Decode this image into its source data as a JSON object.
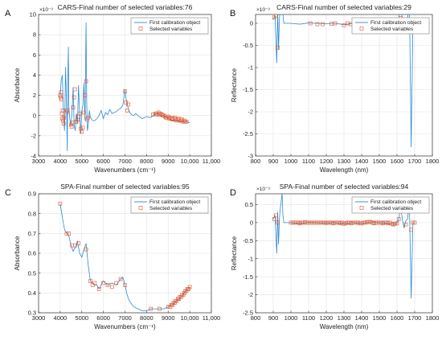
{
  "chart_data": [
    {
      "panel_label": "A",
      "type": "line",
      "title": "CARS-Final number of selected variables:76",
      "xlabel": "Wavenumbers (cm⁻¹)",
      "ylabel": "Absorbance",
      "multiplier": "×10⁻³",
      "xlim": [
        3000,
        11000
      ],
      "ylim": [
        -4,
        10
      ],
      "xticks": [
        3000,
        4000,
        5000,
        6000,
        7000,
        8000,
        9000,
        10000,
        11000
      ],
      "xtick_labels": [
        "3000",
        "4000",
        "5000",
        "6000",
        "7000",
        "8000",
        "9000",
        "10,000",
        "11,000"
      ],
      "yticks": [
        -4,
        -2,
        0,
        2,
        4,
        6,
        8,
        10
      ],
      "grid": true,
      "legend_position": "top-right",
      "series": [
        {
          "name": "First calibration object",
          "x": [
            4000,
            4050,
            4100,
            4150,
            4200,
            4250,
            4300,
            4330,
            4350,
            4380,
            4400,
            4450,
            4500,
            4550,
            4600,
            4650,
            4700,
            4750,
            4800,
            4850,
            4900,
            4950,
            5000,
            5050,
            5100,
            5150,
            5200,
            5230,
            5260,
            5300,
            5350,
            5400,
            5500,
            5600,
            5700,
            5800,
            5900,
            6000,
            6100,
            6200,
            6300,
            6400,
            6500,
            6600,
            6700,
            6800,
            6900,
            7000,
            7050,
            7100,
            7200,
            7300,
            7400,
            7500,
            7600,
            7800,
            8000,
            8200,
            8400,
            8600,
            8800,
            9000,
            9200,
            9400,
            9600,
            9800,
            10000
          ],
          "y": [
            2.0,
            3.5,
            4.0,
            0.2,
            -1.5,
            4.8,
            0.5,
            -3.5,
            3.5,
            6.8,
            1.0,
            -0.5,
            -1.0,
            0.5,
            2.8,
            -1.0,
            -1.5,
            0.2,
            -0.8,
            3.0,
            0.2,
            -1.8,
            0.5,
            1.0,
            3.2,
            -0.5,
            9.2,
            1.5,
            -1.5,
            -1.0,
            0.5,
            -0.2,
            -0.5,
            -0.5,
            -0.3,
            0.0,
            0.5,
            -0.3,
            0.3,
            0.1,
            0.6,
            0.2,
            0.3,
            0.4,
            0.6,
            0.7,
            1.0,
            2.6,
            1.7,
            1.1,
            0.4,
            0.1,
            0.0,
            0.2,
            0.0,
            -0.3,
            -0.1,
            -0.2,
            0.2,
            0.1,
            0.0,
            -0.3,
            -0.5,
            -0.5,
            -0.6,
            -0.6,
            -0.7
          ]
        },
        {
          "name": "Selected variables",
          "x": [
            4000,
            4020,
            4040,
            4060,
            4080,
            4100,
            4120,
            4140,
            4160,
            4180,
            4300,
            4320,
            4500,
            4530,
            4560,
            4600,
            4640,
            4680,
            4750,
            4800,
            4850,
            4900,
            4950,
            5000,
            5050,
            5100,
            5150,
            5200,
            5250,
            5280,
            7000,
            7050,
            7100,
            7150,
            8300,
            8400,
            8450,
            8500,
            8550,
            8600,
            8650,
            8700,
            8750,
            8800,
            8850,
            8900,
            8950,
            9000,
            9050,
            9100,
            9150,
            9200,
            9250,
            9300,
            9350,
            9400,
            9450,
            9500,
            9550,
            9600,
            9650,
            9700,
            9750,
            9800,
            9850
          ],
          "y": [
            2.0,
            1.8,
            2.3,
            1.6,
            0.2,
            -0.3,
            0.5,
            -0.5,
            -0.8,
            -0.2,
            0.3,
            0.5,
            -0.9,
            -1.1,
            -0.7,
            0.8,
            1.8,
            2.6,
            -0.6,
            -0.4,
            -0.1,
            0.2,
            -1.3,
            -1.6,
            -1.2,
            0.3,
            2.0,
            3.4,
            -0.4,
            -0.2,
            2.4,
            1.3,
            0.5,
            1.1,
            0.1,
            0.2,
            0.2,
            0.1,
            0.3,
            0.1,
            0.2,
            0.1,
            0.0,
            0.0,
            -0.1,
            -0.2,
            -0.2,
            -0.1,
            -0.3,
            -0.2,
            -0.3,
            -0.4,
            -0.3,
            -0.2,
            -0.4,
            -0.5,
            -0.4,
            -0.3,
            -0.5,
            -0.5,
            -0.4,
            -0.6,
            -0.5,
            -0.6,
            -0.6
          ]
        }
      ]
    },
    {
      "panel_label": "B",
      "type": "line",
      "title": "CARS-Final number of selected variables:29",
      "xlabel": "Wavelength (nm)",
      "ylabel": "Reflectance",
      "multiplier": "×10⁻³",
      "xlim": [
        800,
        1800
      ],
      "ylim": [
        -3,
        0.2
      ],
      "xticks": [
        800,
        900,
        1000,
        1100,
        1200,
        1300,
        1400,
        1500,
        1600,
        1700,
        1800
      ],
      "xtick_labels": [
        "800",
        "900",
        "1000",
        "1100",
        "1200",
        "1300",
        "1400",
        "1500",
        "1600",
        "1700",
        "1800"
      ],
      "yticks": [
        -3,
        -2.5,
        -2,
        -1.5,
        -1,
        -0.5,
        0
      ],
      "grid": true,
      "legend_position": "top-right",
      "series": [
        {
          "name": "First calibration object",
          "x": [
            900,
            910,
            920,
            925,
            930,
            935,
            940,
            945,
            950,
            955,
            960,
            970,
            980,
            990,
            1000,
            1050,
            1100,
            1150,
            1200,
            1250,
            1300,
            1350,
            1400,
            1450,
            1500,
            1550,
            1580,
            1600,
            1610,
            1620,
            1630,
            1640,
            1650,
            1660,
            1670,
            1680,
            1690,
            1700
          ],
          "y": [
            0.1,
            0.15,
            -0.9,
            0.3,
            -0.6,
            0.1,
            0.4,
            0.6,
            0.8,
            0.2,
            0.0,
            0.0,
            0.0,
            0.0,
            0.0,
            -0.02,
            0.01,
            0.0,
            -0.01,
            0.0,
            -0.03,
            0.0,
            -0.02,
            0.02,
            0.0,
            -0.02,
            -0.05,
            -0.02,
            0.1,
            0.45,
            0.1,
            -0.15,
            0.05,
            0.1,
            0.6,
            -2.8,
            0.0,
            0.0
          ]
        },
        {
          "name": "Selected variables",
          "x": [
            905,
            915,
            925,
            1110,
            1150,
            1180,
            1230,
            1250,
            1300,
            1320,
            1340,
            1380,
            1400,
            1410,
            1450,
            1470,
            1480,
            1490,
            1500,
            1520,
            1530,
            1600,
            1610,
            1620,
            1640,
            1650,
            1680,
            1690,
            1700
          ],
          "y": [
            0.13,
            0.18,
            -0.55,
            0.0,
            -0.02,
            -0.02,
            -0.01,
            0.0,
            -0.04,
            0.0,
            -0.02,
            0.02,
            0.03,
            -0.04,
            -0.03,
            -0.02,
            0.03,
            -0.02,
            0.02,
            0.01,
            -0.01,
            -0.04,
            0.08,
            0.12,
            0.0,
            0.03,
            0.0,
            0.0,
            0.0
          ]
        }
      ]
    },
    {
      "panel_label": "C",
      "type": "line",
      "title": "SPA-Final number of selected variables:95",
      "xlabel": "Wavenumbers (cm⁻¹)",
      "ylabel": "Absorbance",
      "multiplier": "",
      "xlim": [
        3000,
        11000
      ],
      "ylim": [
        0.3,
        0.9
      ],
      "xticks": [
        3000,
        4000,
        5000,
        6000,
        7000,
        8000,
        9000,
        10000,
        11000
      ],
      "xtick_labels": [
        "3000",
        "4000",
        "5000",
        "6000",
        "7000",
        "8000",
        "9000",
        "10,000",
        "11,000"
      ],
      "yticks": [
        0.3,
        0.4,
        0.5,
        0.6,
        0.7,
        0.8,
        0.9
      ],
      "grid": true,
      "legend_position": "top-right",
      "series": [
        {
          "name": "First calibration object",
          "x": [
            4000,
            4100,
            4200,
            4300,
            4400,
            4500,
            4600,
            4700,
            4800,
            4900,
            5000,
            5100,
            5200,
            5300,
            5400,
            5500,
            5600,
            5700,
            5800,
            5900,
            6000,
            6200,
            6400,
            6600,
            6800,
            6900,
            7000,
            7100,
            7200,
            7400,
            7600,
            7800,
            8000,
            8200,
            8400,
            8600,
            8800,
            9000,
            9200,
            9400,
            9600,
            9800,
            10000
          ],
          "y": [
            0.85,
            0.78,
            0.72,
            0.7,
            0.69,
            0.64,
            0.61,
            0.63,
            0.66,
            0.6,
            0.58,
            0.62,
            0.65,
            0.54,
            0.46,
            0.45,
            0.44,
            0.44,
            0.42,
            0.44,
            0.46,
            0.44,
            0.45,
            0.44,
            0.47,
            0.48,
            0.44,
            0.39,
            0.36,
            0.33,
            0.32,
            0.31,
            0.31,
            0.32,
            0.32,
            0.32,
            0.32,
            0.33,
            0.34,
            0.36,
            0.38,
            0.41,
            0.43
          ]
        },
        {
          "name": "Selected variables",
          "x": [
            4000,
            4300,
            4400,
            4550,
            4700,
            4850,
            5200,
            5400,
            5500,
            5600,
            5800,
            6000,
            6200,
            6400,
            6600,
            6800,
            7000,
            8200,
            8600,
            9000,
            9100,
            9150,
            9200,
            9250,
            9300,
            9350,
            9400,
            9450,
            9500,
            9550,
            9600,
            9650,
            9700,
            9750,
            9800,
            9850,
            9900,
            9950,
            10000
          ],
          "y": [
            0.85,
            0.7,
            0.7,
            0.64,
            0.64,
            0.65,
            0.62,
            0.46,
            0.44,
            0.45,
            0.42,
            0.45,
            0.44,
            0.43,
            0.45,
            0.47,
            0.44,
            0.32,
            0.32,
            0.33,
            0.33,
            0.34,
            0.34,
            0.35,
            0.35,
            0.36,
            0.36,
            0.37,
            0.37,
            0.38,
            0.38,
            0.39,
            0.39,
            0.4,
            0.41,
            0.41,
            0.42,
            0.42,
            0.43
          ]
        }
      ]
    },
    {
      "panel_label": "D",
      "type": "line",
      "title": "SPA-Final number of selected variables:94",
      "xlabel": "Wavelength (nm)",
      "ylabel": "Reflectance",
      "multiplier": "×10⁻³",
      "xlim": [
        800,
        1800
      ],
      "ylim": [
        -2.5,
        0.8
      ],
      "xticks": [
        800,
        900,
        1000,
        1100,
        1200,
        1300,
        1400,
        1500,
        1600,
        1700,
        1800
      ],
      "xtick_labels": [
        "800",
        "900",
        "1000",
        "1100",
        "1200",
        "1300",
        "1400",
        "1500",
        "1600",
        "1700",
        "1800"
      ],
      "yticks": [
        -2.5,
        -2,
        -1.5,
        -1,
        -0.5,
        0,
        0.5
      ],
      "grid": true,
      "legend_position": "top-right",
      "series": [
        {
          "name": "First calibration object",
          "x": [
            900,
            910,
            920,
            925,
            930,
            935,
            940,
            945,
            950,
            955,
            960,
            970,
            980,
            990,
            1000,
            1050,
            1100,
            1150,
            1200,
            1250,
            1300,
            1350,
            1400,
            1450,
            1500,
            1550,
            1580,
            1600,
            1610,
            1620,
            1630,
            1640,
            1650,
            1660,
            1670,
            1680,
            1690,
            1700
          ],
          "y": [
            0.1,
            0.2,
            -0.85,
            0.3,
            -0.6,
            0.1,
            0.4,
            0.6,
            0.8,
            0.2,
            0.0,
            0.0,
            0.0,
            0.0,
            0.0,
            -0.02,
            0.01,
            0.0,
            -0.01,
            0.0,
            -0.03,
            0.0,
            -0.02,
            0.02,
            0.0,
            -0.02,
            -0.05,
            -0.02,
            0.1,
            0.45,
            0.1,
            -0.15,
            0.05,
            0.1,
            0.6,
            -2.1,
            0.0,
            0.0
          ]
        },
        {
          "name": "Selected variables",
          "x": [
            905,
            915,
            925,
            1000,
            1010,
            1020,
            1030,
            1040,
            1050,
            1060,
            1070,
            1080,
            1090,
            1100,
            1110,
            1120,
            1130,
            1140,
            1150,
            1160,
            1170,
            1180,
            1190,
            1200,
            1210,
            1220,
            1230,
            1240,
            1250,
            1260,
            1270,
            1280,
            1290,
            1300,
            1310,
            1320,
            1330,
            1340,
            1350,
            1360,
            1370,
            1380,
            1390,
            1400,
            1410,
            1420,
            1430,
            1440,
            1450,
            1460,
            1470,
            1480,
            1490,
            1500,
            1510,
            1520,
            1530,
            1540,
            1550,
            1560,
            1570,
            1580,
            1590,
            1600,
            1610,
            1620,
            1650,
            1680,
            1690,
            1700
          ],
          "y": [
            0.1,
            0.2,
            0.0,
            0.0,
            0.0,
            0.0,
            0.0,
            0.0,
            -0.02,
            0.0,
            0.0,
            0.01,
            0.0,
            0.0,
            0.0,
            0.0,
            0.0,
            0.0,
            0.0,
            0.0,
            0.0,
            0.0,
            0.0,
            -0.01,
            0.0,
            0.0,
            0.0,
            -0.02,
            0.0,
            0.0,
            0.0,
            -0.02,
            0.0,
            -0.03,
            -0.02,
            0.0,
            0.0,
            -0.02,
            0.0,
            0.0,
            0.0,
            0.0,
            -0.02,
            -0.02,
            0.0,
            0.0,
            0.01,
            0.02,
            0.02,
            0.0,
            -0.02,
            0.0,
            0.0,
            0.0,
            0.0,
            -0.02,
            0.0,
            0.0,
            -0.02,
            0.0,
            -0.03,
            -0.05,
            -0.03,
            -0.02,
            0.1,
            0.45,
            -0.05,
            -0.2,
            0.0,
            0.0
          ]
        }
      ]
    }
  ],
  "colors": {
    "line": "#2b8bd1",
    "marker": "#e0522a",
    "axis": "#333333",
    "grid": "#e3e3e3"
  }
}
